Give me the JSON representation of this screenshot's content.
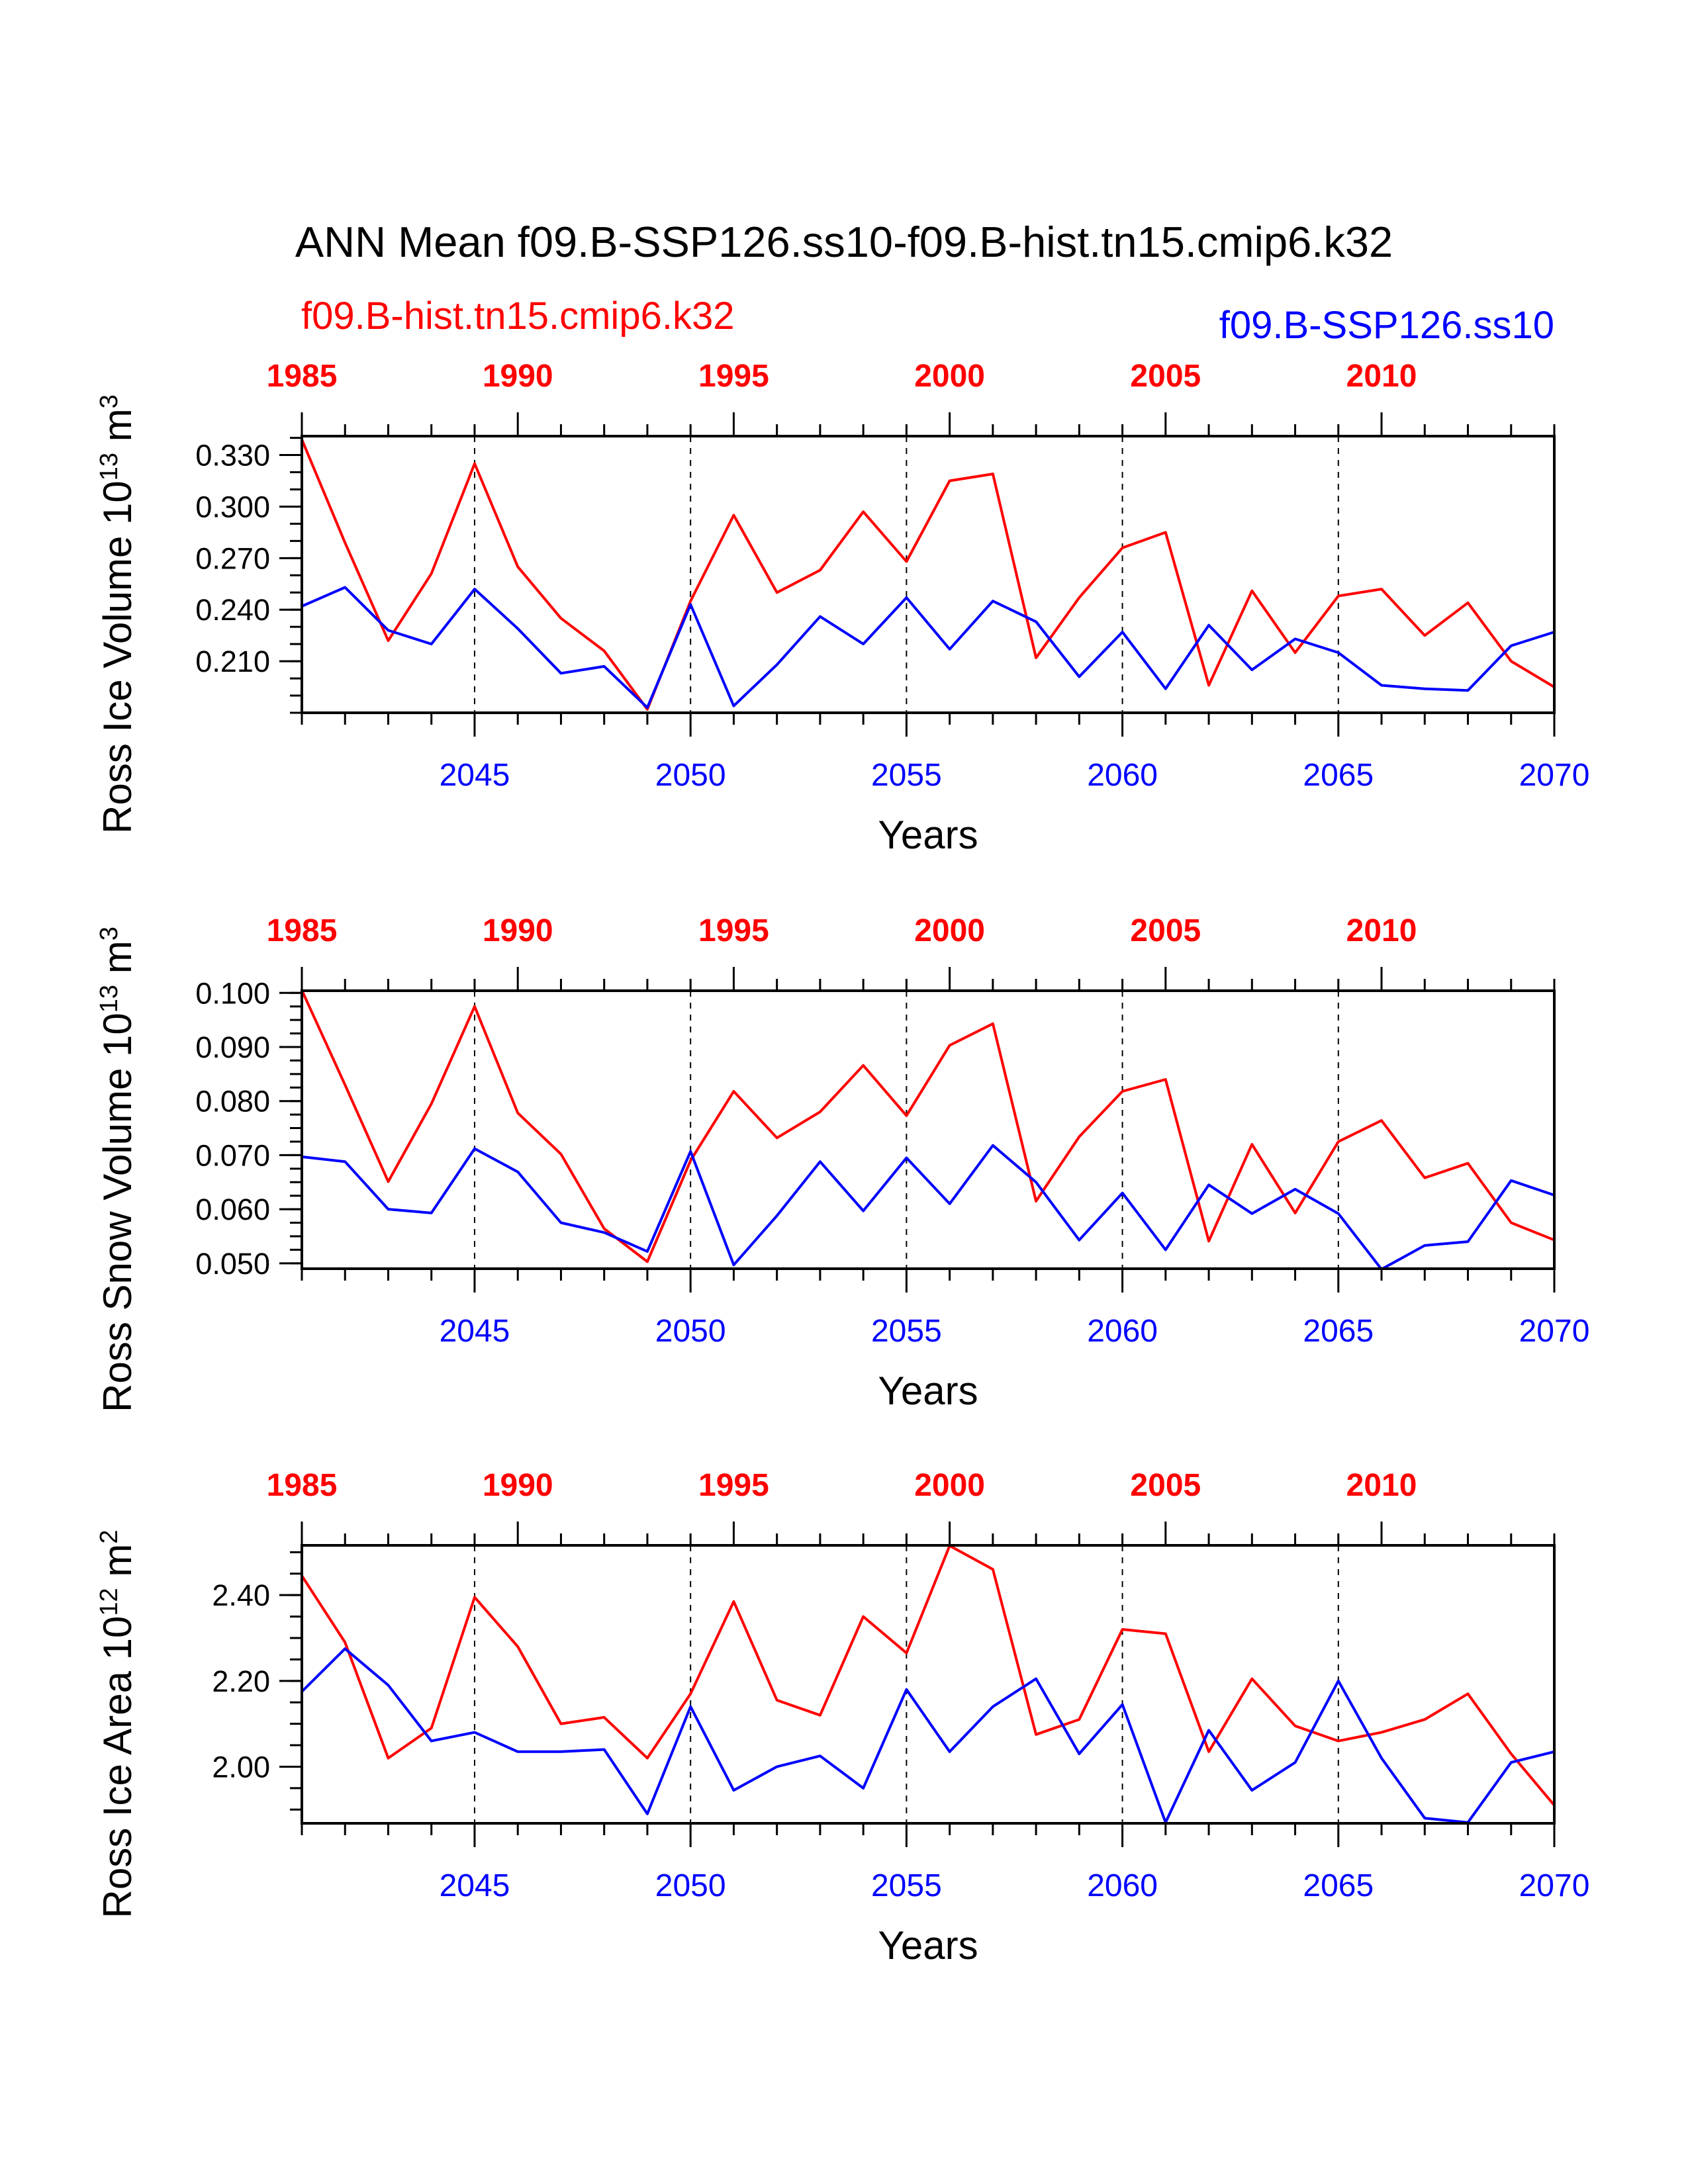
{
  "title": "ANN Mean f09.B-SSP126.ss10-f09.B-hist.tn15.cmip6.k32",
  "legend": {
    "red_label": "f09.B-hist.tn15.cmip6.k32",
    "blue_label": "f09.B-SSP126.ss10"
  },
  "colors": {
    "red": "#ff0000",
    "blue": "#0000ff",
    "axis": "#000000"
  },
  "chart_data": [
    {
      "type": "line",
      "ylabel": "Ross Ice Volume 10",
      "ylabel_exp": "13",
      "ylabel_unit": " m",
      "ylabel_unit_exp": "3",
      "xlabel": "Years",
      "ylim": [
        0.18,
        0.341
      ],
      "yticks": [
        0.21,
        0.24,
        0.27,
        0.3,
        0.33
      ],
      "ytick_labels": [
        "0.210",
        "0.240",
        "0.270",
        "0.300",
        "0.330"
      ],
      "yminor_step": 0.01,
      "xlim": [
        2041,
        2070
      ],
      "xticks": [
        2045,
        2050,
        2055,
        2060,
        2065,
        2070
      ],
      "top_xlim": [
        1985,
        2014
      ],
      "top_xticks": [
        1985,
        1990,
        1995,
        2000,
        2005,
        2010
      ],
      "series": [
        {
          "name": "f09.B-hist.tn15.cmip6.k32",
          "color": "#ff0000",
          "x": [
            1985,
            1986,
            1987,
            1988,
            1989,
            1990,
            1991,
            1992,
            1993,
            1994,
            1995,
            1996,
            1997,
            1998,
            1999,
            2000,
            2001,
            2002,
            2003,
            2004,
            2005,
            2006,
            2007,
            2008,
            2009,
            2010,
            2011,
            2012,
            2013,
            2014
          ],
          "values": [
            0.339,
            0.279,
            0.222,
            0.261,
            0.325,
            0.265,
            0.235,
            0.216,
            0.182,
            0.245,
            0.295,
            0.25,
            0.263,
            0.297,
            0.268,
            0.315,
            0.319,
            0.212,
            0.247,
            0.276,
            0.285,
            0.196,
            0.251,
            0.215,
            0.248,
            0.252,
            0.225,
            0.244,
            0.21,
            0.195
          ]
        },
        {
          "name": "f09.B-SSP126.ss10",
          "color": "#0000ff",
          "x": [
            2041,
            2042,
            2043,
            2044,
            2045,
            2046,
            2047,
            2048,
            2049,
            2050,
            2051,
            2052,
            2053,
            2054,
            2055,
            2056,
            2057,
            2058,
            2059,
            2060,
            2061,
            2062,
            2063,
            2064,
            2065,
            2066,
            2067,
            2068,
            2069,
            2070
          ],
          "values": [
            0.242,
            0.253,
            0.228,
            0.22,
            0.252,
            0.229,
            0.203,
            0.207,
            0.183,
            0.243,
            0.184,
            0.208,
            0.236,
            0.22,
            0.247,
            0.217,
            0.245,
            0.233,
            0.201,
            0.227,
            0.194,
            0.231,
            0.205,
            0.223,
            0.215,
            0.196,
            0.194,
            0.193,
            0.219,
            0.227
          ]
        }
      ]
    },
    {
      "type": "line",
      "ylabel": "Ross Snow Volume 10",
      "ylabel_exp": "13",
      "ylabel_unit": " m",
      "ylabel_unit_exp": "3",
      "xlabel": "Years",
      "ylim": [
        0.049,
        0.1004
      ],
      "yticks": [
        0.05,
        0.06,
        0.07,
        0.08,
        0.09,
        0.1
      ],
      "ytick_labels": [
        "0.050",
        "0.060",
        "0.070",
        "0.080",
        "0.090",
        "0.100"
      ],
      "yminor_step": 0.0025,
      "xlim": [
        2041,
        2070
      ],
      "xticks": [
        2045,
        2050,
        2055,
        2060,
        2065,
        2070
      ],
      "top_xlim": [
        1985,
        2014
      ],
      "top_xticks": [
        1985,
        1990,
        1995,
        2000,
        2005,
        2010
      ],
      "series": [
        {
          "name": "f09.B-hist.tn15.cmip6.k32",
          "color": "#ff0000",
          "x": [
            1985,
            1986,
            1987,
            1988,
            1989,
            1990,
            1991,
            1992,
            1993,
            1994,
            1995,
            1996,
            1997,
            1998,
            1999,
            2000,
            2001,
            2002,
            2003,
            2004,
            2005,
            2006,
            2007,
            2008,
            2009,
            2010,
            2011,
            2012,
            2013,
            2014
          ],
          "values": [
            0.1005,
            0.083,
            0.0651,
            0.0795,
            0.0975,
            0.0778,
            0.0702,
            0.0564,
            0.0503,
            0.069,
            0.0818,
            0.0732,
            0.078,
            0.0866,
            0.0773,
            0.0903,
            0.0943,
            0.0615,
            0.0734,
            0.0818,
            0.084,
            0.0541,
            0.072,
            0.0593,
            0.0725,
            0.0764,
            0.0658,
            0.0685,
            0.0575,
            0.0543
          ]
        },
        {
          "name": "f09.B-SSP126.ss10",
          "color": "#0000ff",
          "x": [
            2041,
            2042,
            2043,
            2044,
            2045,
            2046,
            2047,
            2048,
            2049,
            2050,
            2051,
            2052,
            2053,
            2054,
            2055,
            2056,
            2057,
            2058,
            2059,
            2060,
            2061,
            2062,
            2063,
            2064,
            2065,
            2066,
            2067,
            2068,
            2069,
            2070
          ],
          "values": [
            0.0697,
            0.0688,
            0.06,
            0.0593,
            0.0712,
            0.0669,
            0.0575,
            0.0557,
            0.0522,
            0.0707,
            0.0497,
            0.0588,
            0.0688,
            0.0597,
            0.0695,
            0.061,
            0.0718,
            0.065,
            0.0543,
            0.063,
            0.0525,
            0.0645,
            0.0592,
            0.0637,
            0.0592,
            0.0489,
            0.0533,
            0.054,
            0.0653,
            0.0626
          ]
        }
      ]
    },
    {
      "type": "line",
      "ylabel": "Ross Ice Area 10",
      "ylabel_exp": "12",
      "ylabel_unit": " m",
      "ylabel_unit_exp": "2",
      "xlabel": "Years",
      "ylim": [
        1.868,
        2.516
      ],
      "yticks": [
        2.0,
        2.2,
        2.4
      ],
      "ytick_labels": [
        "2.00",
        "2.20",
        "2.40"
      ],
      "yminor_step": 0.05,
      "xlim": [
        2041,
        2070
      ],
      "xticks": [
        2045,
        2050,
        2055,
        2060,
        2065,
        2070
      ],
      "top_xlim": [
        1985,
        2014
      ],
      "top_xticks": [
        1985,
        1990,
        1995,
        2000,
        2005,
        2010
      ],
      "series": [
        {
          "name": "f09.B-hist.tn15.cmip6.k32",
          "color": "#ff0000",
          "x": [
            1985,
            1986,
            1987,
            1988,
            1989,
            1990,
            1991,
            1992,
            1993,
            1994,
            1995,
            1996,
            1997,
            1998,
            1999,
            2000,
            2001,
            2002,
            2003,
            2004,
            2005,
            2006,
            2007,
            2008,
            2009,
            2010,
            2011,
            2012,
            2013,
            2014
          ],
          "values": [
            2.445,
            2.29,
            2.02,
            2.09,
            2.395,
            2.28,
            2.1,
            2.115,
            2.02,
            2.17,
            2.385,
            2.155,
            2.12,
            2.35,
            2.265,
            2.515,
            2.46,
            2.075,
            2.11,
            2.32,
            2.31,
            2.035,
            2.205,
            2.095,
            2.06,
            2.08,
            2.11,
            2.17,
            2.03,
            1.91
          ]
        },
        {
          "name": "f09.B-SSP126.ss10",
          "color": "#0000ff",
          "x": [
            2041,
            2042,
            2043,
            2044,
            2045,
            2046,
            2047,
            2048,
            2049,
            2050,
            2051,
            2052,
            2053,
            2054,
            2055,
            2056,
            2057,
            2058,
            2059,
            2060,
            2061,
            2062,
            2063,
            2064,
            2065,
            2066,
            2067,
            2068,
            2069,
            2070
          ],
          "values": [
            2.175,
            2.275,
            2.19,
            2.06,
            2.08,
            2.035,
            2.035,
            2.04,
            1.89,
            2.14,
            1.945,
            2.0,
            2.025,
            1.95,
            2.18,
            2.035,
            2.14,
            2.205,
            2.03,
            2.145,
            1.87,
            2.085,
            1.945,
            2.01,
            2.2,
            2.02,
            1.88,
            1.87,
            2.01,
            2.035
          ]
        }
      ]
    }
  ]
}
